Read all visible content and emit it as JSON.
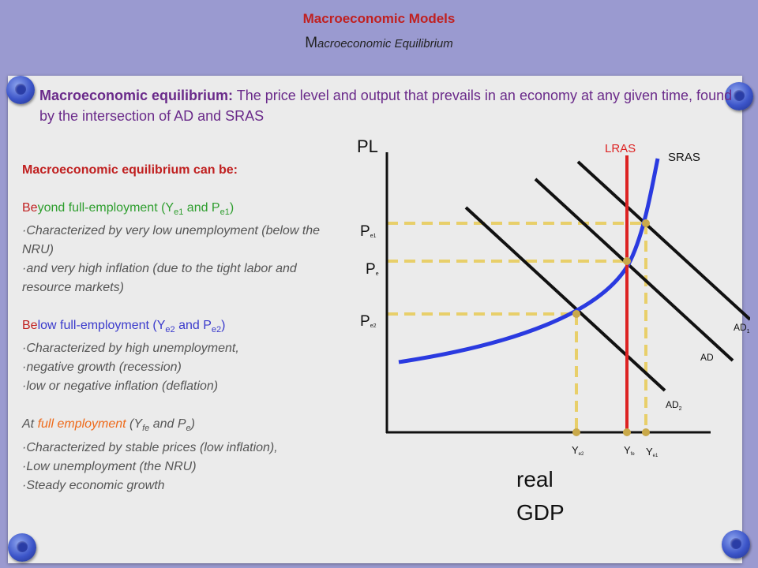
{
  "header": {
    "title": "Macroeconomic Models",
    "subtitle_initial": "M",
    "subtitle_rest": "acroeconomic Equilibrium"
  },
  "definition": {
    "term": "Macroeconomic equilibrium:",
    "text": " The price level and output that prevails in an economy at any given time, found by the intersection of AD and SRAS"
  },
  "side_text": {
    "heading": "Macroeconomic equilibrium can be:",
    "beyond": {
      "prefix": "Be",
      "label": "yond full-employment (Y",
      "sub1": "e1",
      "mid": " and P",
      "sub2": "e1",
      "close": ")",
      "bullets": [
        "·Characterized by very low unemployment (below the NRU)",
        "·and very high inflation (due to the tight labor and resource markets)"
      ]
    },
    "below": {
      "prefix": "Be",
      "label": "low full-employment (Y",
      "sub1": "e2",
      "mid": " and P",
      "sub2": "e2",
      "close": ")",
      "bullets": [
        "·Characterized by high unemployment,",
        "·negative growth (recession)",
        "·low or negative inflation (deflation)"
      ]
    },
    "full": {
      "prefix": "At ",
      "label": "full employment",
      "rest": " (Y",
      "sub1": "fe",
      "mid": " and P",
      "sub2": "e",
      "close": ")",
      "bullets": [
        "·Characterized by stable prices (low inflation),",
        "·Low unemployment (the NRU)",
        "·Steady economic growth"
      ]
    }
  },
  "graph": {
    "y_axis_label": "PL",
    "x_axis_label_line1": "real",
    "x_axis_label_line2": "GDP",
    "curves": {
      "lras": "LRAS",
      "sras": "SRAS",
      "ad": "AD",
      "ad1": "AD",
      "ad1_sub": "1",
      "ad2": "AD",
      "ad2_sub": "2"
    },
    "price_labels": {
      "pe1": "P",
      "pe1_sub": "e1",
      "pe": "P",
      "pe_sub": "e",
      "pe2": "P",
      "pe2_sub": "e2"
    },
    "output_labels": {
      "ye2": "Y",
      "ye2_sub": "e2",
      "yfe": "Y",
      "yfe_sub": "fe",
      "ye1": "Y",
      "ye1_sub": "e1"
    },
    "colors": {
      "lras": "#dd2222",
      "sras": "#2a3ae0",
      "ad": "#111111",
      "guides": "#e8cf6a",
      "points": "#c9a94a"
    }
  }
}
